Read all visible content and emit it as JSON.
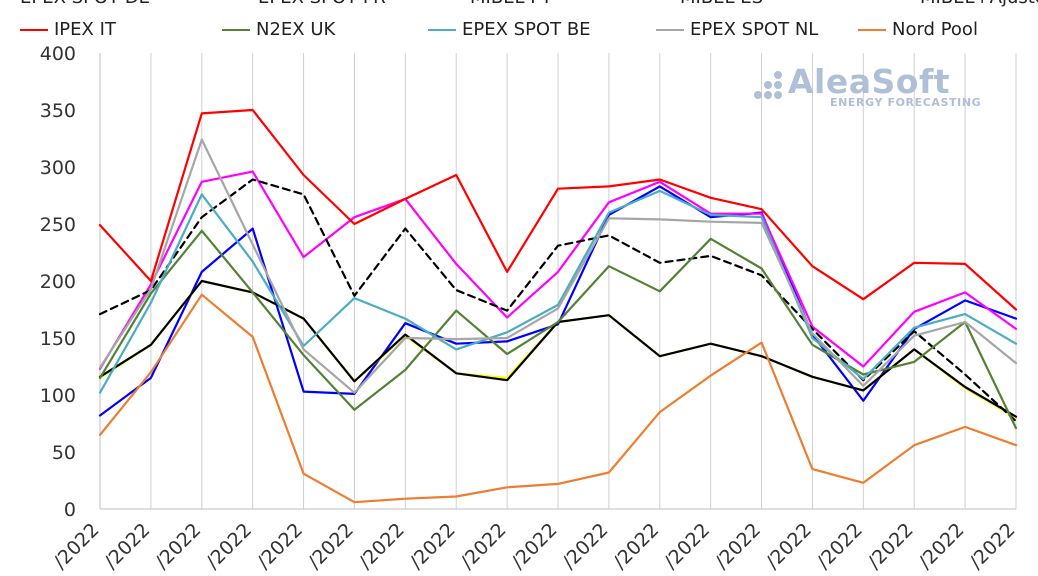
{
  "legend": {
    "row1_partial": [
      "EPEX SPOT DE",
      "EPEX SPOT FR",
      "MIBEL PT",
      "MIBEL ES",
      "MIBEL+Ajuste"
    ],
    "row2": [
      {
        "name": "IPEX IT",
        "color": "#ff0000"
      },
      {
        "name": "N2EX UK",
        "color": "#548235"
      },
      {
        "name": "EPEX SPOT BE",
        "color": "#4bacc6"
      },
      {
        "name": "EPEX SPOT NL",
        "color": "#a6a6a6"
      },
      {
        "name": "Nord Pool",
        "color": "#ed7d31"
      }
    ]
  },
  "logo": {
    "name": "AleaSoft",
    "tagline": "ENERGY FORECASTING",
    "color": "#aebfd6"
  },
  "chart_data": {
    "type": "line",
    "ylim": [
      0,
      400
    ],
    "yticks": [
      0,
      50,
      100,
      150,
      200,
      250,
      300,
      350,
      400
    ],
    "grid": "vertical",
    "x_labels": [
      "/2022",
      "/2022",
      "/2022",
      "/2022",
      "/2022",
      "/2022",
      "/2022",
      "/2022",
      "/2022",
      "/2022",
      "/2022",
      "/2022",
      "/2022",
      "/2022",
      "/2022",
      "/2022",
      "/2022",
      "/2022",
      "/2022"
    ],
    "series": [
      {
        "name": "EPEX SPOT DE",
        "color": "#0000ff",
        "dash": false,
        "values": [
          82,
          115,
          208,
          246,
          103,
          101,
          163,
          145,
          147,
          162,
          258,
          283,
          256,
          260,
          153,
          95,
          158,
          183,
          167
        ]
      },
      {
        "name": "EPEX SPOT FR",
        "color": "#ff00ff",
        "dash": false,
        "values": [
          123,
          197,
          287,
          296,
          221,
          256,
          272,
          215,
          168,
          208,
          269,
          287,
          259,
          259,
          160,
          125,
          173,
          190,
          158
        ]
      },
      {
        "name": "MIBEL PT",
        "color": "#ffff00",
        "dash": false,
        "values": [
          115,
          144,
          200,
          190,
          167,
          112,
          152,
          119,
          115,
          164,
          170,
          134,
          145,
          134,
          116,
          104,
          140,
          106,
          80
        ]
      },
      {
        "name": "MIBEL ES",
        "color": "#000000",
        "dash": false,
        "values": [
          116,
          144,
          200,
          190,
          167,
          112,
          153,
          119,
          113,
          164,
          170,
          134,
          145,
          134,
          116,
          104,
          140,
          107,
          81
        ]
      },
      {
        "name": "MIBEL+Ajuste",
        "color": "#000000",
        "dash": true,
        "values": [
          171,
          192,
          256,
          289,
          276,
          187,
          246,
          192,
          174,
          231,
          240,
          216,
          222,
          205,
          158,
          113,
          156,
          118,
          77
        ]
      },
      {
        "name": "IPEX IT",
        "color": "#ff0000",
        "dash": false,
        "values": [
          249,
          200,
          347,
          350,
          293,
          250,
          272,
          293,
          208,
          281,
          283,
          289,
          273,
          263,
          213,
          184,
          216,
          215,
          175
        ]
      },
      {
        "name": "N2EX UK",
        "color": "#548235",
        "dash": false,
        "values": [
          115,
          189,
          244,
          190,
          135,
          87,
          122,
          174,
          136,
          164,
          213,
          191,
          237,
          211,
          144,
          118,
          129,
          164,
          71
        ]
      },
      {
        "name": "EPEX SPOT BE",
        "color": "#4bacc6",
        "dash": false,
        "values": [
          102,
          181,
          276,
          217,
          143,
          185,
          167,
          140,
          155,
          179,
          260,
          279,
          258,
          256,
          150,
          114,
          159,
          171,
          145
        ]
      },
      {
        "name": "EPEX SPOT NL",
        "color": "#a6a6a6",
        "dash": false,
        "values": [
          124,
          193,
          324,
          232,
          140,
          102,
          150,
          149,
          150,
          176,
          255,
          254,
          252,
          251,
          154,
          108,
          152,
          164,
          128
        ]
      },
      {
        "name": "Nord Pool",
        "color": "#ed7d31",
        "dash": false,
        "values": [
          65,
          120,
          188,
          151,
          31,
          6,
          9,
          11,
          19,
          22,
          32,
          85,
          117,
          146,
          35,
          23,
          56,
          72,
          56
        ]
      }
    ]
  }
}
